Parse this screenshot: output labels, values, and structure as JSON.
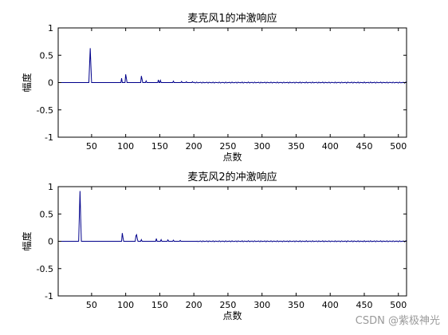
{
  "watermark": "CSDN @紫极神光",
  "chart_data": [
    {
      "type": "line",
      "title": "麦克风1的冲激响应",
      "xlabel": "点数",
      "ylabel": "幅度",
      "xlim": [
        1,
        512
      ],
      "ylim": [
        -1,
        1
      ],
      "xticks": [
        50,
        100,
        150,
        200,
        250,
        300,
        350,
        400,
        450,
        500
      ],
      "yticks": [
        -1,
        -0.5,
        0,
        0.5,
        1
      ],
      "xtick_labels": [
        "50",
        "100",
        "150",
        "200",
        "250",
        "300",
        "350",
        "400",
        "450",
        "500"
      ],
      "ytick_labels": [
        "-1",
        "-0.5",
        "0",
        "0.5",
        "1"
      ],
      "grid": false,
      "line_color": "#00008b",
      "peaks": [
        {
          "x": 47,
          "y": 0.32
        },
        {
          "x": 48,
          "y": 0.63
        },
        {
          "x": 49,
          "y": 0.3
        },
        {
          "x": 94,
          "y": 0.08
        },
        {
          "x": 100,
          "y": 0.15
        },
        {
          "x": 101,
          "y": 0.08
        },
        {
          "x": 123,
          "y": 0.12
        },
        {
          "x": 124,
          "y": 0.06
        },
        {
          "x": 130,
          "y": 0.03
        },
        {
          "x": 148,
          "y": 0.05
        },
        {
          "x": 151,
          "y": 0.04
        },
        {
          "x": 170,
          "y": 0.025
        },
        {
          "x": 182,
          "y": 0.02
        },
        {
          "x": 189,
          "y": 0.015
        },
        {
          "x": 198,
          "y": 0.015
        }
      ],
      "ripple_start": 200,
      "ripple_amplitude": 0.01
    },
    {
      "type": "line",
      "title": "麦克风2的冲激响应",
      "xlabel": "点数",
      "ylabel": "幅度",
      "xlim": [
        1,
        512
      ],
      "ylim": [
        -1,
        1
      ],
      "xticks": [
        50,
        100,
        150,
        200,
        250,
        300,
        350,
        400,
        450,
        500
      ],
      "yticks": [
        -1,
        -0.5,
        0,
        0.5,
        1
      ],
      "xtick_labels": [
        "50",
        "100",
        "150",
        "200",
        "250",
        "300",
        "350",
        "400",
        "450",
        "500"
      ],
      "ytick_labels": [
        "-1",
        "-0.5",
        "0",
        "0.5",
        "1"
      ],
      "grid": false,
      "line_color": "#00008b",
      "peaks": [
        {
          "x": 32,
          "y": 0.45
        },
        {
          "x": 33,
          "y": 0.92
        },
        {
          "x": 34,
          "y": 0.42
        },
        {
          "x": 95,
          "y": 0.15
        },
        {
          "x": 96,
          "y": 0.07
        },
        {
          "x": 115,
          "y": 0.1
        },
        {
          "x": 116,
          "y": 0.12
        },
        {
          "x": 117,
          "y": 0.05
        },
        {
          "x": 123,
          "y": 0.03
        },
        {
          "x": 145,
          "y": 0.05
        },
        {
          "x": 152,
          "y": 0.03
        },
        {
          "x": 162,
          "y": 0.025
        },
        {
          "x": 170,
          "y": 0.02
        },
        {
          "x": 180,
          "y": 0.015
        }
      ],
      "ripple_start": 205,
      "ripple_amplitude": 0.01
    }
  ]
}
